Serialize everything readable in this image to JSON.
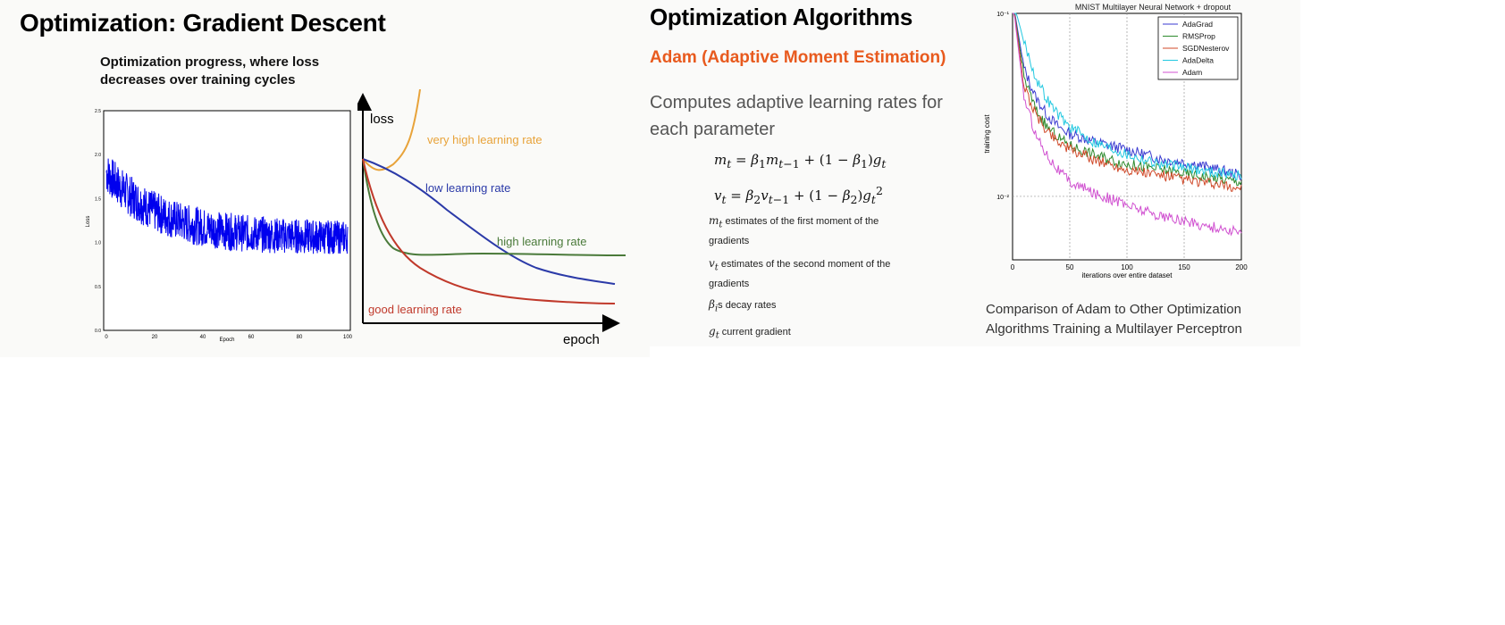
{
  "slide_left": {
    "title": "Optimization: Gradient Descent",
    "caption_line1": "Optimization progress, where loss",
    "caption_line2": "decreases over training cycles",
    "loss_chart": {
      "ylabel": "Loss",
      "xlabel": "Epoch",
      "x_ticks": [
        "0",
        "20",
        "40",
        "60",
        "80",
        "100"
      ],
      "y_ticks": [
        "2.5",
        "2.0",
        "1.5",
        "1.0",
        "0.5",
        "0.0"
      ],
      "color": "#0000ee"
    },
    "lr_diagram": {
      "axis_y": "loss",
      "axis_x": "epoch",
      "curves": [
        {
          "label": "very high learning rate",
          "color": "#e8a33a"
        },
        {
          "label": "low learning rate",
          "color": "#2b3aa8"
        },
        {
          "label": "high learning rate",
          "color": "#4a7a3a"
        },
        {
          "label": "good learning rate",
          "color": "#c0392b"
        }
      ]
    }
  },
  "slide_right": {
    "title": "Optimization Algorithms",
    "subtitle": "Adam (Adaptive Moment Estimation)",
    "subtitle_color": "#e85a1e",
    "body_line1": "Computes adaptive learning rates for",
    "body_line2": "each parameter",
    "note_m_line1": "estimates of the first moment of the",
    "note_m_line2": "gradients",
    "note_v_line1": "estimates of the second moment of the",
    "note_v_line2": "gradients",
    "note_beta": "s decay rates",
    "note_g": "current gradient",
    "figure_caption_line1": "Comparison of Adam to Other Optimization",
    "figure_caption_line2": "Algorithms Training a Multilayer Perceptron"
  },
  "chart_data": {
    "type": "line",
    "title": "MNIST Multilayer Neural Network + dropout",
    "xlabel": "iterations over entire dataset",
    "ylabel": "training cost",
    "x_ticks": [
      "0",
      "50",
      "100",
      "150",
      "200"
    ],
    "y_ticks": [
      "10⁻¹",
      "10⁻²"
    ],
    "xlim": [
      0,
      200
    ],
    "ylog": true,
    "grid": true,
    "legend_position": "top-right",
    "x": [
      0,
      10,
      20,
      30,
      40,
      50,
      70,
      100,
      130,
      160,
      200
    ],
    "series": [
      {
        "name": "AdaGrad",
        "color": "#3a3ad0",
        "values": [
          0.12,
          0.05,
          0.035,
          0.028,
          0.024,
          0.022,
          0.02,
          0.018,
          0.016,
          0.015,
          0.013
        ]
      },
      {
        "name": "RMSProp",
        "color": "#2e8b2e",
        "values": [
          0.12,
          0.045,
          0.03,
          0.024,
          0.021,
          0.019,
          0.017,
          0.015,
          0.014,
          0.013,
          0.012
        ]
      },
      {
        "name": "SGDNesterov",
        "color": "#d04a2a",
        "values": [
          0.12,
          0.04,
          0.028,
          0.023,
          0.02,
          0.018,
          0.016,
          0.014,
          0.013,
          0.012,
          0.011
        ]
      },
      {
        "name": "AdaDelta",
        "color": "#22c8e0",
        "values": [
          0.12,
          0.07,
          0.045,
          0.034,
          0.028,
          0.024,
          0.02,
          0.017,
          0.015,
          0.014,
          0.013
        ]
      },
      {
        "name": "Adam",
        "color": "#d050d0",
        "values": [
          0.12,
          0.035,
          0.022,
          0.017,
          0.014,
          0.012,
          0.0105,
          0.009,
          0.0078,
          0.0071,
          0.0063
        ]
      }
    ]
  }
}
